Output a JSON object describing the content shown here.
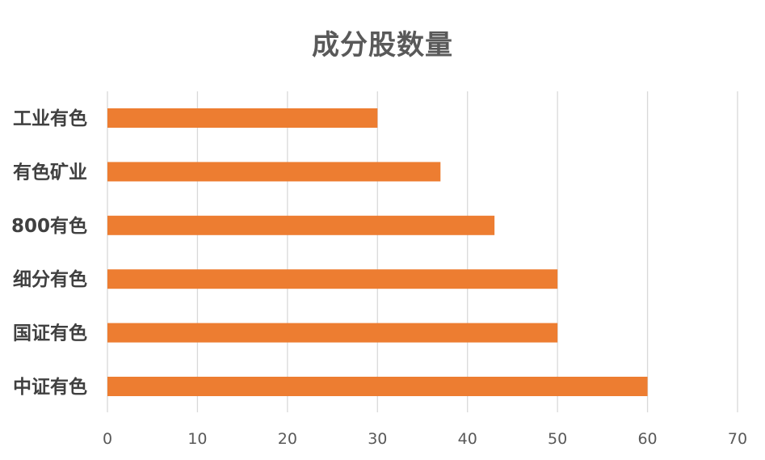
{
  "chart_data": {
    "type": "bar",
    "orientation": "horizontal",
    "title": "成分股数量",
    "categories": [
      "工业有色",
      "有色矿业",
      "800有色",
      "细分有色",
      "国证有色",
      "中证有色"
    ],
    "values": [
      30,
      37,
      43,
      50,
      50,
      60
    ],
    "xlim": [
      0,
      70
    ],
    "xticks": [
      0,
      10,
      20,
      30,
      40,
      50,
      60,
      70
    ],
    "grid": "vertical",
    "legend": "none",
    "bar_color": "#ed7d31",
    "grid_color": "#d9d9d9"
  }
}
